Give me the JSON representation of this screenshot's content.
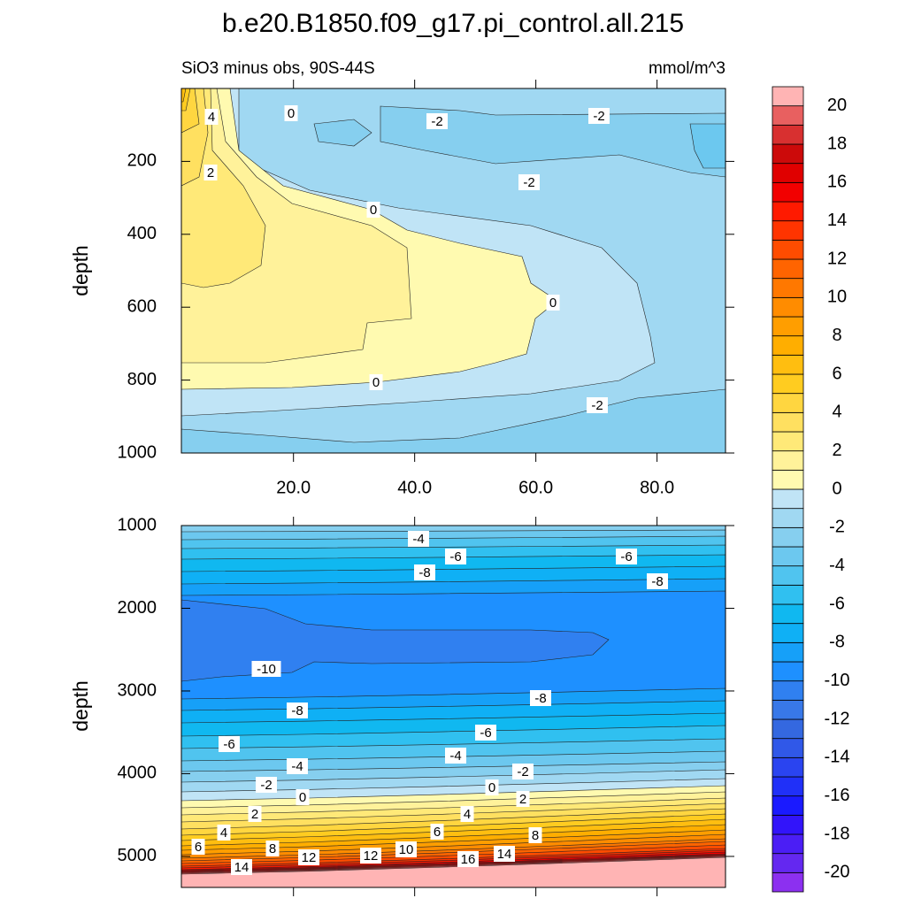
{
  "title": "b.e20.B1850.f09_g17.pi_control.all.215",
  "chart_data": [
    {
      "type": "contour",
      "subtitle": "SiO3 minus obs, 90S-44S",
      "units": "mmol/m^3",
      "ylabel": "depth",
      "xlim": [
        1.5,
        91.3
      ],
      "ylim": [
        0,
        1000
      ],
      "y_reversed": true,
      "xticks": [
        {
          "value": 20,
          "label": "20.0"
        },
        {
          "value": 40,
          "label": "40.0"
        },
        {
          "value": 60,
          "label": "60.0"
        },
        {
          "value": 80,
          "label": "80.0"
        }
      ],
      "yticks": [
        200,
        400,
        600,
        800,
        1000
      ],
      "contour_labels": [
        4,
        0,
        -2,
        -2,
        2,
        -2,
        0,
        0,
        0,
        -2
      ]
    },
    {
      "type": "contour",
      "ylabel": "depth",
      "xlim": [
        1.5,
        91.3
      ],
      "ylim": [
        1000,
        5375
      ],
      "y_reversed": true,
      "yticks": [
        1000,
        2000,
        3000,
        4000,
        5000
      ],
      "contour_labels": [
        -4,
        -6,
        -6,
        -8,
        -8,
        -10,
        -8,
        -8,
        -6,
        -6,
        -4,
        -4,
        -2,
        -2,
        0,
        0,
        2,
        2,
        4,
        4,
        6,
        8,
        6,
        8,
        12,
        12,
        10,
        16,
        14,
        14
      ]
    }
  ],
  "colorbar": {
    "levels": [
      -20,
      -19,
      -18,
      -17,
      -16,
      -15,
      -14,
      -13,
      -12,
      -11,
      -10,
      -9,
      -8,
      -7,
      -6,
      -5,
      -4,
      -3,
      -2,
      -1,
      0,
      1,
      2,
      3,
      4,
      5,
      6,
      7,
      8,
      9,
      10,
      11,
      12,
      13,
      14,
      15,
      16,
      17,
      18,
      19,
      20
    ],
    "ticks": [
      -20,
      -18,
      -16,
      -14,
      -12,
      -10,
      -8,
      -6,
      -4,
      -2,
      0,
      2,
      4,
      6,
      8,
      10,
      12,
      14,
      16,
      18,
      20
    ],
    "colors": [
      "#8c30f0",
      "#6428f0",
      "#4b1ef5",
      "#3214fa",
      "#1a1aff",
      "#2030f8",
      "#2a44f0",
      "#3058e8",
      "#3468e0",
      "#3878e8",
      "#3080f0",
      "#1e90ff",
      "#16a0f8",
      "#0fb0f5",
      "#10b8f0",
      "#30c0f0",
      "#50c4ef",
      "#6cc8ef",
      "#86cfef",
      "#a0d8f2",
      "#c0e4f6",
      "#fffab0",
      "#fff29a",
      "#ffe978",
      "#ffe060",
      "#ffd640",
      "#ffcc20",
      "#ffbe10",
      "#ffae00",
      "#ff9e00",
      "#ff8c00",
      "#ff7800",
      "#ff6400",
      "#ff4c00",
      "#ff3400",
      "#ff1a00",
      "#f20000",
      "#e00000",
      "#cc0a0a",
      "#d83030",
      "#e86060",
      "#ffb4b4"
    ]
  }
}
